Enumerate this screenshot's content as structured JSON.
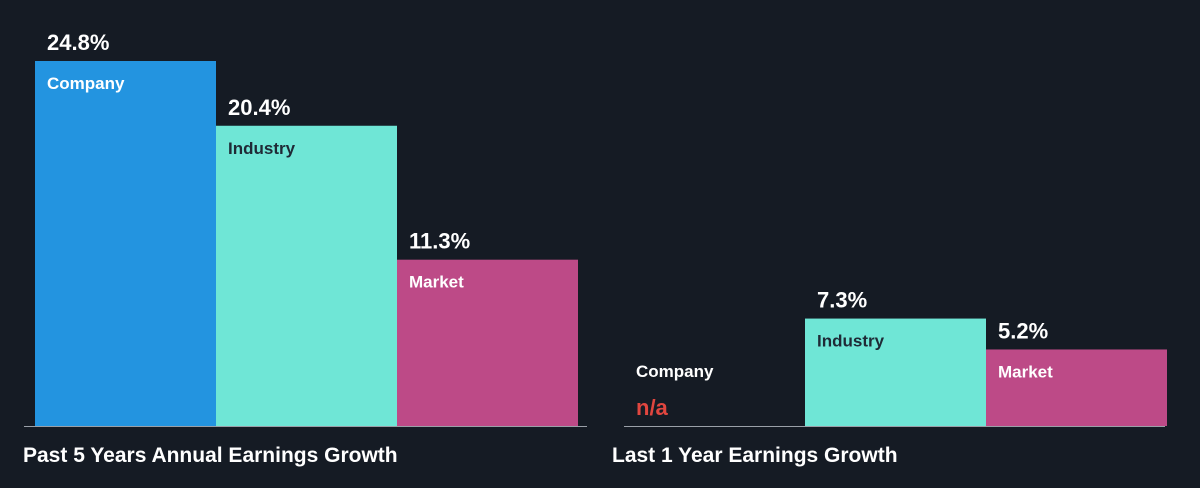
{
  "colors": {
    "background": "#151b24",
    "company": "#2394e0",
    "industry": "#6fe6d6",
    "market": "#bd4a87",
    "baseline": "#9aa0a8",
    "na": "#e0463f",
    "text_light": "#ffffff",
    "text_dark": "#1f2a36"
  },
  "chart_data": [
    {
      "type": "bar",
      "title": "Past 5 Years Annual Earnings Growth",
      "categories": [
        "Company",
        "Industry",
        "Market"
      ],
      "values": [
        24.8,
        20.4,
        11.3
      ],
      "value_labels": [
        "24.8%",
        "20.4%",
        "11.3%"
      ],
      "ylim": [
        0,
        24.8
      ]
    },
    {
      "type": "bar",
      "title": "Last 1 Year Earnings Growth",
      "categories": [
        "Company",
        "Industry",
        "Market"
      ],
      "values": [
        null,
        7.3,
        5.2
      ],
      "value_labels": [
        "n/a",
        "7.3%",
        "5.2%"
      ],
      "ylim": [
        0,
        24.8
      ]
    }
  ]
}
